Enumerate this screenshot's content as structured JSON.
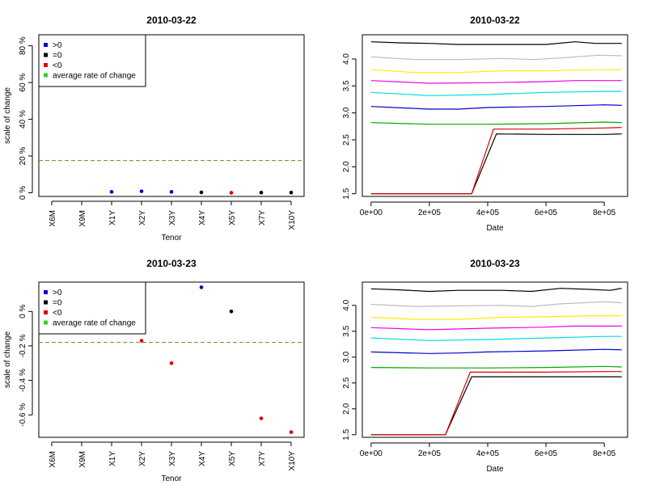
{
  "chart_data": [
    {
      "type": "scatter",
      "title": "2010-03-22",
      "xlabel": "Tenor",
      "ylabel": "scale of change",
      "categories": [
        "X6M",
        "X9M",
        "X1Y",
        "X2Y",
        "X3Y",
        "X4Y",
        "X5Y",
        "X7Y",
        "X10Y"
      ],
      "ylim": [
        -2,
        86
      ],
      "yticks": [
        0,
        20,
        40,
        60,
        80
      ],
      "ytick_labels": [
        "0 %",
        "20 %",
        "40 %",
        "60 %",
        "80 %"
      ],
      "points": [
        {
          "x": "X1Y",
          "y": 0.5,
          "class": "gt"
        },
        {
          "x": "X2Y",
          "y": 0.8,
          "class": "gt"
        },
        {
          "x": "X3Y",
          "y": 0.5,
          "class": "gt"
        },
        {
          "x": "X4Y",
          "y": 0.2,
          "class": "eq"
        },
        {
          "x": "X5Y",
          "y": 0.0,
          "class": "lt"
        },
        {
          "x": "X7Y",
          "y": 0.1,
          "class": "eq"
        },
        {
          "x": "X10Y",
          "y": 0.1,
          "class": "eq"
        }
      ],
      "average_line": 17.5,
      "legend": [
        {
          "label": ">0",
          "color": "#0000cc"
        },
        {
          "label": "=0",
          "color": "#000000"
        },
        {
          "label": "<0",
          "color": "#dd0000"
        },
        {
          "label": "average rate of change",
          "color": "#33cc33"
        }
      ],
      "legend_position": "top-left",
      "avg_line_color": "#6b8e23",
      "grid": false
    },
    {
      "type": "line",
      "title": "2010-03-22",
      "xlabel": "Date",
      "ylabel": "",
      "xlim": [
        -30000,
        880000
      ],
      "ylim": [
        1.45,
        4.45
      ],
      "xticks": [
        0,
        200000,
        400000,
        600000,
        800000
      ],
      "xtick_labels": [
        "0e+00",
        "2e+05",
        "4e+05",
        "6e+05",
        "8e+05"
      ],
      "yticks": [
        1.5,
        2.0,
        2.5,
        3.0,
        3.5,
        4.0
      ],
      "ytick_labels": [
        "1.5",
        "2.0",
        "2.5",
        "3.0",
        "3.5",
        "4.0"
      ],
      "series": [
        {
          "color": "#000000",
          "x": [
            0,
            100000,
            200000,
            300000,
            400000,
            500000,
            600000,
            700000,
            770000,
            860000
          ],
          "y": [
            4.32,
            4.3,
            4.29,
            4.27,
            4.27,
            4.27,
            4.27,
            4.32,
            4.29,
            4.29
          ]
        },
        {
          "color": "#bbbbbb",
          "x": [
            0,
            150000,
            300000,
            450000,
            560000,
            650000,
            780000,
            860000
          ],
          "y": [
            4.04,
            3.99,
            3.99,
            4.01,
            3.99,
            4.02,
            4.07,
            4.06
          ]
        },
        {
          "color": "#ffee00",
          "x": [
            0,
            150000,
            300000,
            450000,
            600000,
            750000,
            860000
          ],
          "y": [
            3.8,
            3.75,
            3.75,
            3.78,
            3.78,
            3.8,
            3.8
          ]
        },
        {
          "color": "#ee00ee",
          "x": [
            0,
            200000,
            400000,
            600000,
            700000,
            860000
          ],
          "y": [
            3.6,
            3.55,
            3.56,
            3.58,
            3.6,
            3.6
          ]
        },
        {
          "color": "#00dddd",
          "x": [
            0,
            200000,
            400000,
            600000,
            800000,
            860000
          ],
          "y": [
            3.38,
            3.32,
            3.34,
            3.38,
            3.4,
            3.4
          ]
        },
        {
          "color": "#0000cc",
          "x": [
            0,
            200000,
            300000,
            400000,
            600000,
            800000,
            860000
          ],
          "y": [
            3.12,
            3.07,
            3.07,
            3.1,
            3.12,
            3.15,
            3.14
          ]
        },
        {
          "color": "#00aa00",
          "x": [
            0,
            200000,
            400000,
            600000,
            800000,
            860000
          ],
          "y": [
            2.82,
            2.79,
            2.79,
            2.8,
            2.83,
            2.82
          ]
        },
        {
          "color": "#000000",
          "x": [
            0,
            345000,
            430000,
            600000,
            800000,
            860000
          ],
          "y": [
            1.5,
            1.5,
            2.61,
            2.6,
            2.6,
            2.61
          ]
        },
        {
          "color": "#dd0000",
          "x": [
            0,
            345000,
            420000,
            600000,
            800000,
            860000
          ],
          "y": [
            1.5,
            1.5,
            2.7,
            2.7,
            2.72,
            2.73
          ]
        }
      ],
      "grid": false
    },
    {
      "type": "scatter",
      "title": "2010-03-23",
      "xlabel": "Tenor",
      "ylabel": "scale of change",
      "categories": [
        "X6M",
        "X9M",
        "X1Y",
        "X2Y",
        "X3Y",
        "X4Y",
        "X5Y",
        "X7Y",
        "X10Y"
      ],
      "ylim": [
        -0.73,
        0.17
      ],
      "yticks": [
        0.0,
        -0.2,
        -0.4,
        -0.6
      ],
      "ytick_labels": [
        "0 %",
        "-0.2 %",
        "-0.4 %",
        "-0.6 %"
      ],
      "points": [
        {
          "x": "X2Y",
          "y": -0.17,
          "class": "lt"
        },
        {
          "x": "X3Y",
          "y": -0.3,
          "class": "lt"
        },
        {
          "x": "X4Y",
          "y": 0.14,
          "class": "gt"
        },
        {
          "x": "X5Y",
          "y": 0.0,
          "class": "eq"
        },
        {
          "x": "X7Y",
          "y": -0.62,
          "class": "lt"
        },
        {
          "x": "X10Y",
          "y": -0.7,
          "class": "lt"
        }
      ],
      "average_line": -0.18,
      "legend": [
        {
          "label": ">0",
          "color": "#0000cc"
        },
        {
          "label": "=0",
          "color": "#000000"
        },
        {
          "label": "<0",
          "color": "#dd0000"
        },
        {
          "label": "average rate of change",
          "color": "#33cc33"
        }
      ],
      "legend_position": "top-left",
      "avg_line_color": "#6b8e23",
      "grid": false
    },
    {
      "type": "line",
      "title": "2010-03-23",
      "xlabel": "Date",
      "ylabel": "",
      "xlim": [
        -30000,
        880000
      ],
      "ylim": [
        1.45,
        4.45
      ],
      "xticks": [
        0,
        200000,
        400000,
        600000,
        800000
      ],
      "xtick_labels": [
        "0e+00",
        "2e+05",
        "4e+05",
        "6e+05",
        "8e+05"
      ],
      "yticks": [
        1.5,
        2.0,
        2.5,
        3.0,
        3.5,
        4.0
      ],
      "ytick_labels": [
        "1.5",
        "2.0",
        "2.5",
        "3.0",
        "3.5",
        "4.0"
      ],
      "series": [
        {
          "color": "#000000",
          "x": [
            0,
            100000,
            200000,
            300000,
            450000,
            550000,
            650000,
            750000,
            820000,
            860000
          ],
          "y": [
            4.32,
            4.3,
            4.27,
            4.29,
            4.29,
            4.27,
            4.33,
            4.31,
            4.29,
            4.33
          ]
        },
        {
          "color": "#bbbbbb",
          "x": [
            0,
            150000,
            300000,
            450000,
            550000,
            650000,
            800000,
            860000
          ],
          "y": [
            4.02,
            3.98,
            3.99,
            4.0,
            3.98,
            4.03,
            4.07,
            4.05
          ]
        },
        {
          "color": "#ffee00",
          "x": [
            0,
            150000,
            300000,
            450000,
            600000,
            750000,
            860000
          ],
          "y": [
            3.77,
            3.73,
            3.73,
            3.77,
            3.78,
            3.8,
            3.8
          ]
        },
        {
          "color": "#ee00ee",
          "x": [
            0,
            200000,
            400000,
            600000,
            700000,
            860000
          ],
          "y": [
            3.57,
            3.53,
            3.56,
            3.58,
            3.6,
            3.6
          ]
        },
        {
          "color": "#00dddd",
          "x": [
            0,
            200000,
            400000,
            600000,
            800000,
            860000
          ],
          "y": [
            3.37,
            3.32,
            3.34,
            3.37,
            3.4,
            3.4
          ]
        },
        {
          "color": "#0000cc",
          "x": [
            0,
            200000,
            300000,
            400000,
            600000,
            800000,
            860000
          ],
          "y": [
            3.1,
            3.07,
            3.08,
            3.1,
            3.12,
            3.15,
            3.14
          ]
        },
        {
          "color": "#00aa00",
          "x": [
            0,
            200000,
            400000,
            600000,
            800000,
            860000
          ],
          "y": [
            2.8,
            2.79,
            2.79,
            2.8,
            2.82,
            2.81
          ]
        },
        {
          "color": "#000000",
          "x": [
            0,
            255000,
            345000,
            600000,
            800000,
            860000
          ],
          "y": [
            1.5,
            1.5,
            2.62,
            2.62,
            2.62,
            2.62
          ]
        },
        {
          "color": "#dd0000",
          "x": [
            0,
            255000,
            340000,
            600000,
            800000,
            860000
          ],
          "y": [
            1.5,
            1.5,
            2.71,
            2.71,
            2.72,
            2.72
          ]
        }
      ],
      "grid": false
    }
  ]
}
